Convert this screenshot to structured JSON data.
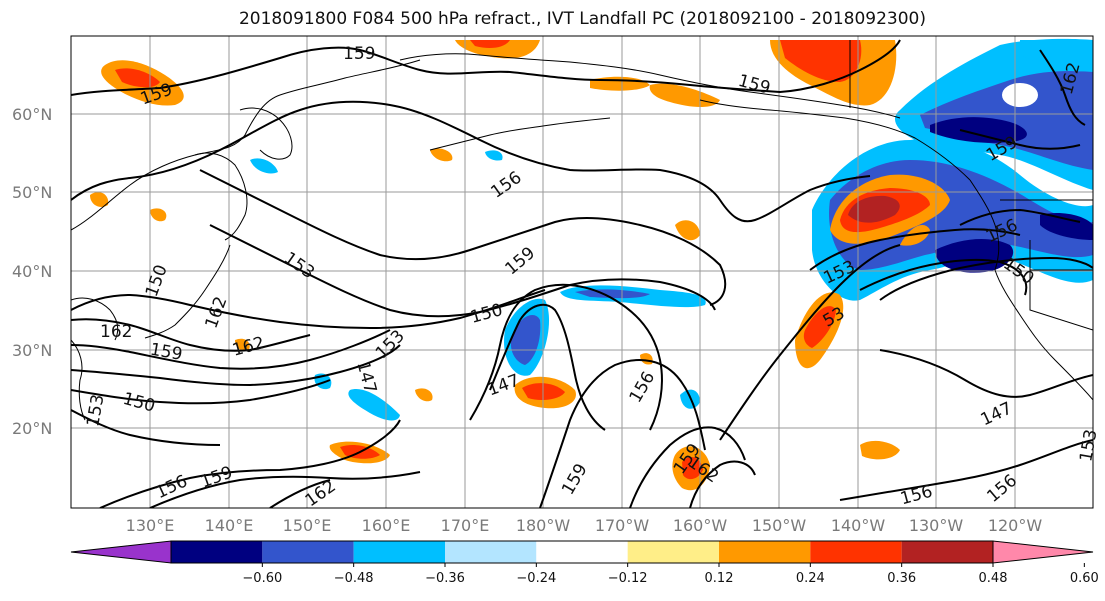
{
  "title": "2018091800 F084 500 hPa refract., IVT Landfall PC (2018092100 - 2018092300)",
  "lat_labels": [
    "60°N",
    "50°N",
    "40°N",
    "30°N",
    "20°N"
  ],
  "lon_labels": [
    "130°E",
    "140°E",
    "150°E",
    "160°E",
    "170°E",
    "180°W",
    "170°W",
    "160°W",
    "150°W",
    "140°W",
    "130°W",
    "120°W"
  ],
  "colorbar": {
    "tick_labels": [
      "−0.60",
      "−0.48",
      "−0.36",
      "−0.24",
      "−0.12",
      "0.12",
      "0.24",
      "0.36",
      "0.48",
      "0.60"
    ],
    "colors": [
      "#9933cc",
      "#000080",
      "#3355cc",
      "#00bfff",
      "#b3e5ff",
      "#ffffff",
      "#ffee88",
      "#ff9900",
      "#ff3300",
      "#b22222",
      "#ff88aa"
    ]
  },
  "contour_labels": [
    {
      "text": "159"
    },
    {
      "text": "159"
    },
    {
      "text": "159"
    },
    {
      "text": "156"
    },
    {
      "text": "159"
    },
    {
      "text": "153"
    },
    {
      "text": "150"
    },
    {
      "text": "150"
    },
    {
      "text": "162"
    },
    {
      "text": "162"
    },
    {
      "text": "159"
    },
    {
      "text": "162"
    },
    {
      "text": "153"
    },
    {
      "text": "147"
    },
    {
      "text": "150"
    },
    {
      "text": "147"
    },
    {
      "text": "156"
    },
    {
      "text": "159"
    },
    {
      "text": "159"
    },
    {
      "text": "162"
    },
    {
      "text": "156"
    },
    {
      "text": "159"
    },
    {
      "text": "162"
    },
    {
      "text": "153"
    },
    {
      "text": "53"
    },
    {
      "text": "156"
    },
    {
      "text": "150"
    },
    {
      "text": "147"
    },
    {
      "text": "156"
    },
    {
      "text": "156"
    },
    {
      "text": "153"
    },
    {
      "text": "159"
    },
    {
      "text": "162"
    },
    {
      "text": "153"
    }
  ]
}
